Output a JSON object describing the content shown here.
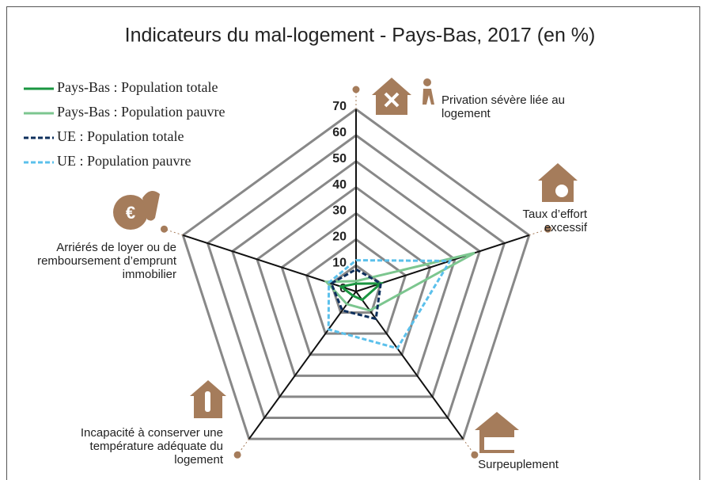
{
  "chart_data": {
    "type": "radar",
    "title": "Indicateurs du mal-logement - Pays-Bas, 2017 (en %)",
    "categories": [
      "Privation sévère liée au logement",
      "Taux d’effort excessif",
      "Surpeuplement",
      "Incapacité à conserver une température adéquate du logement",
      "Arriérés de loyer ou de remboursement d’emprunt immobilier"
    ],
    "rlim": [
      0,
      70
    ],
    "rticks": [
      0,
      10,
      20,
      30,
      40,
      50,
      60,
      70
    ],
    "grid": true,
    "legend": "upper left",
    "series": [
      {
        "name": "Pays-Bas : Population totale",
        "color": "#1a9641",
        "dash": false,
        "values": [
          3,
          10,
          4,
          2,
          6
        ]
      },
      {
        "name": "Pays-Bas : Population pauvre",
        "color": "#7cc68f",
        "dash": false,
        "values": [
          4,
          48,
          9,
          6,
          12
        ]
      },
      {
        "name": "UE : Population totale",
        "color": "#0d2f5c",
        "dash": true,
        "values": [
          8.5,
          10,
          13,
          9,
          10
        ]
      },
      {
        "name": "UE : Population pauvre",
        "color": "#5bc0eb",
        "dash": true,
        "values": [
          12,
          38,
          27,
          18,
          11
        ]
      }
    ]
  }
}
